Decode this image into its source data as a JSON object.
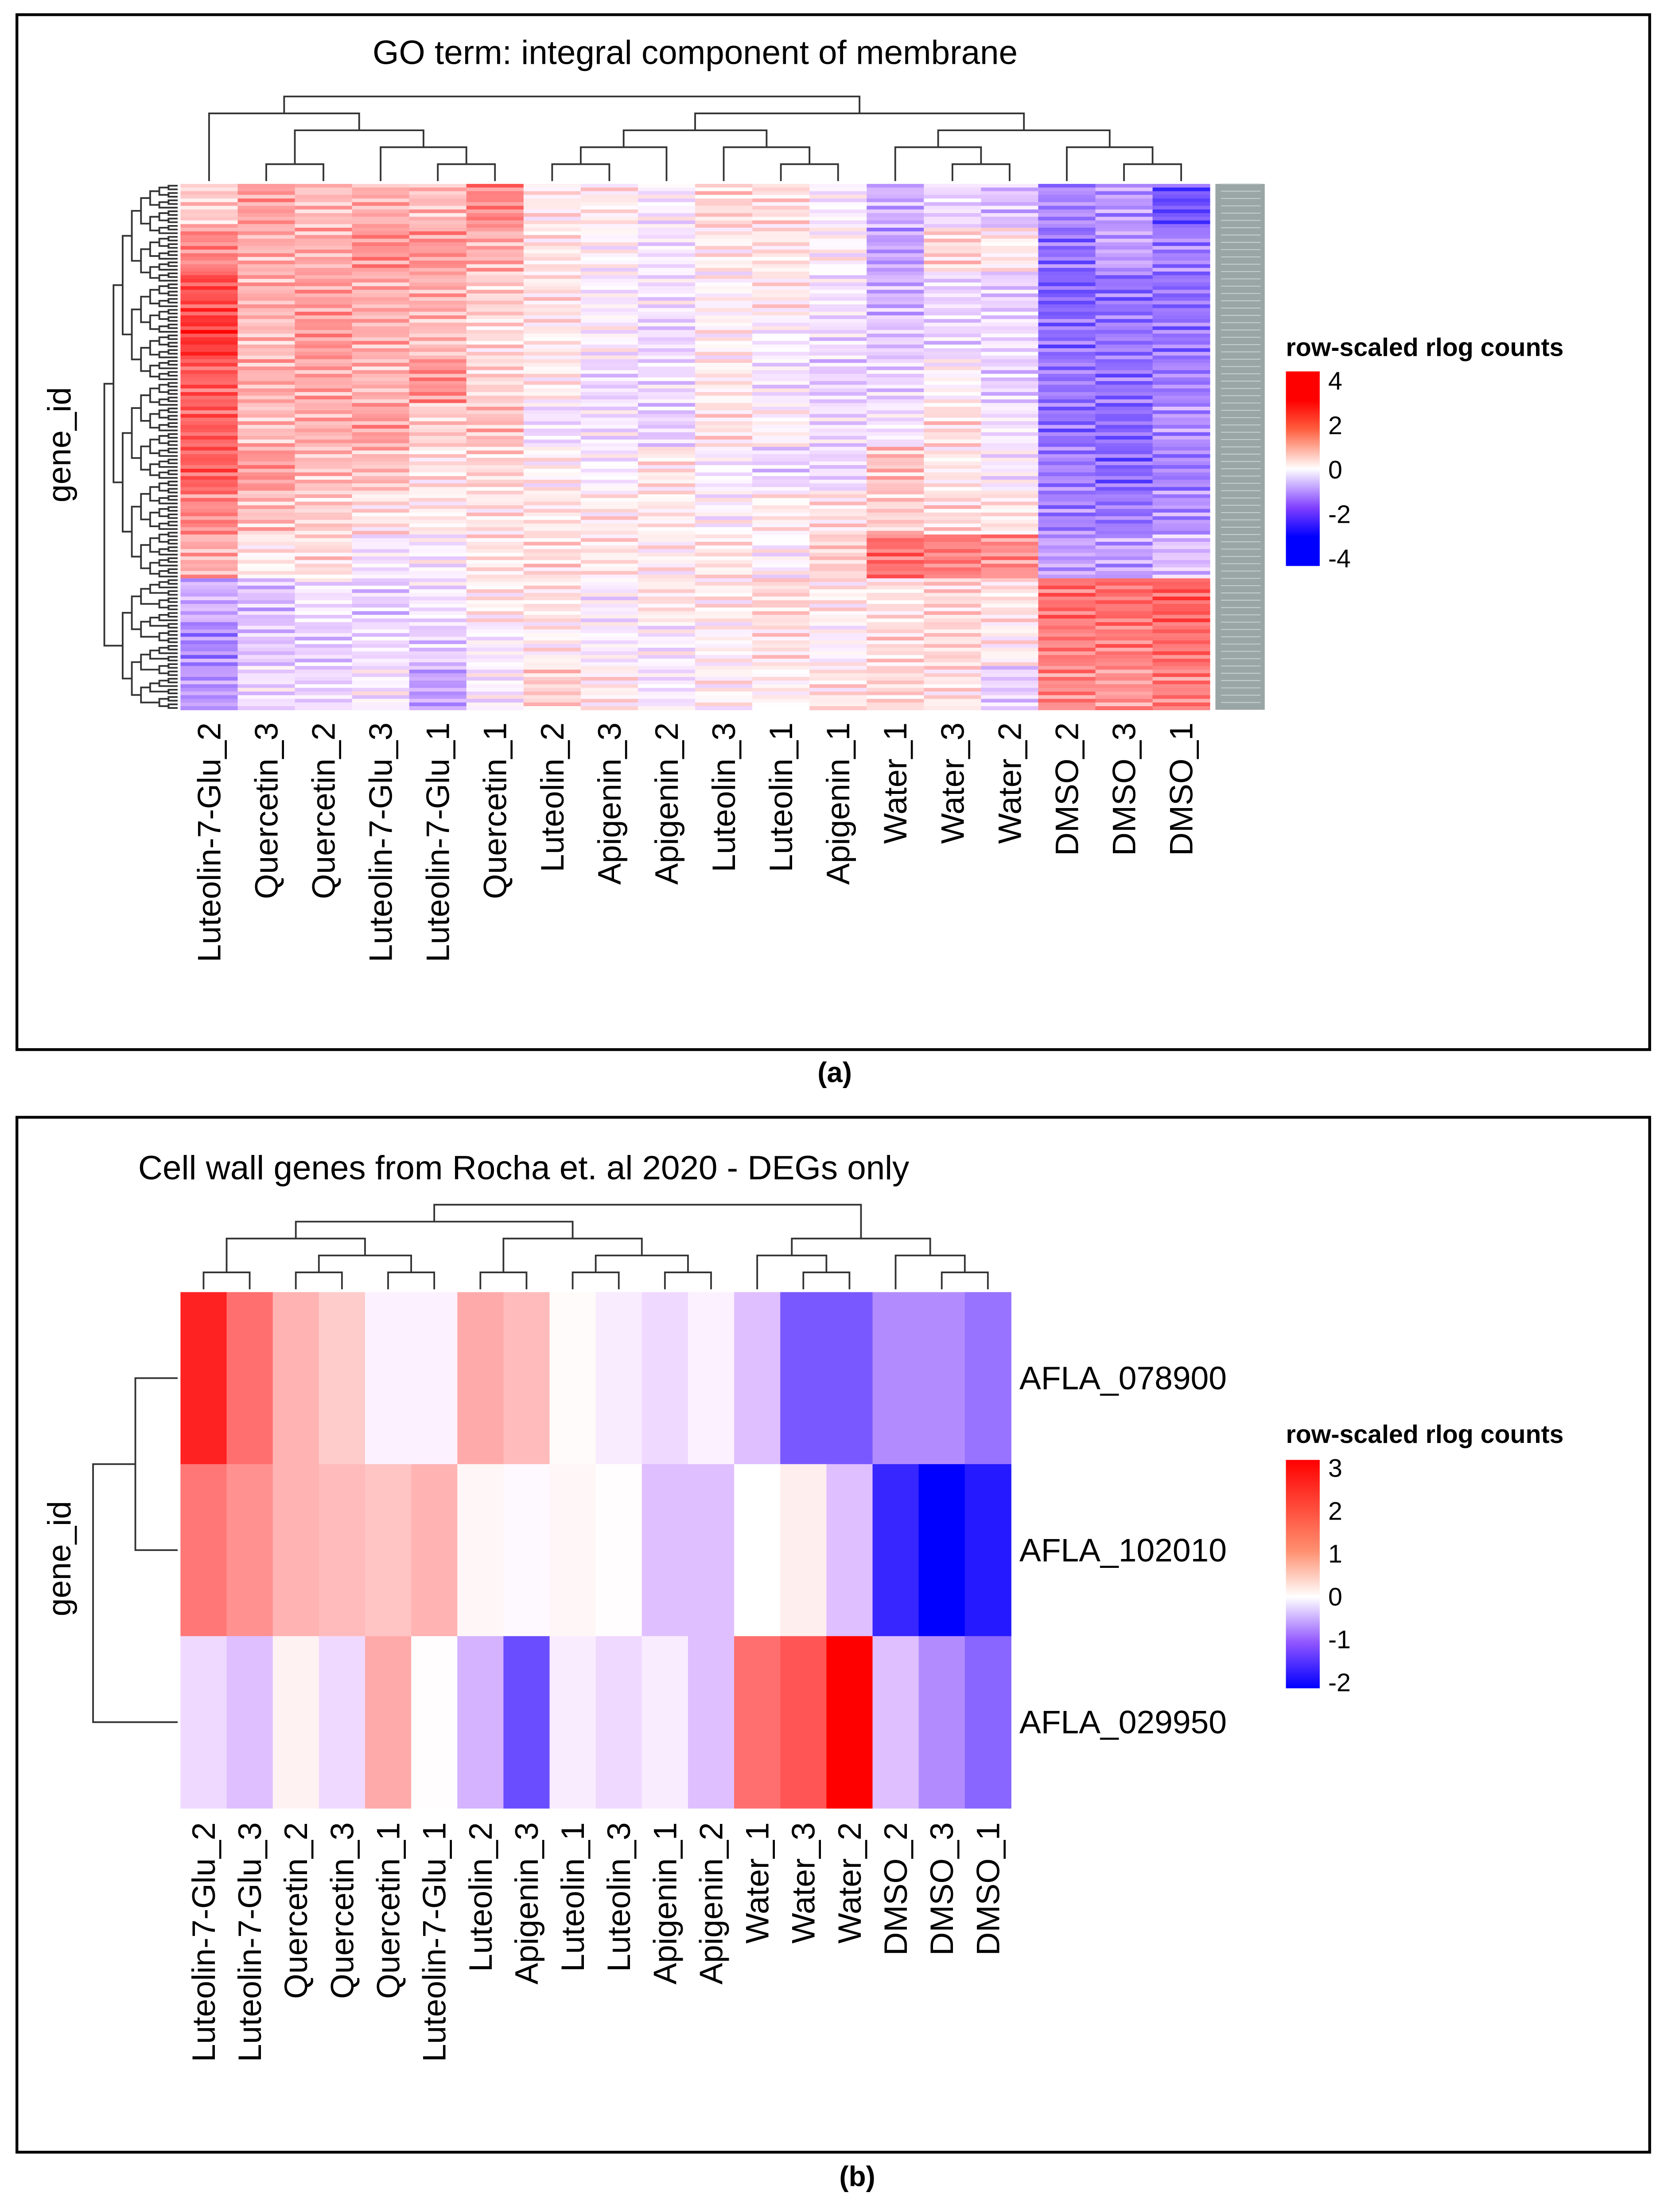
{
  "chart_data": [
    {
      "type": "heatmap",
      "panel_label": "(a)",
      "title": "GO term: integral component of membrane",
      "ylabel": "gene_id",
      "legend_title": "row-scaled rlog counts",
      "legend_ticks": [
        "4",
        "2",
        "0",
        "-2",
        "-4"
      ],
      "color_range": [
        -4,
        4
      ],
      "colors": {
        "high": "#FF0000",
        "mid": "#FFFFFF",
        "low": "#0000FF"
      },
      "columns": [
        "Luteolin-7-Glu_2",
        "Quercetin_3",
        "Quercetin_2",
        "Luteolin-7-Glu_3",
        "Luteolin-7-Glu_1",
        "Quercetin_1",
        "Luteolin_2",
        "Apigenin_3",
        "Apigenin_2",
        "Luteolin_3",
        "Luteolin_1",
        "Apigenin_1",
        "Water_1",
        "Water_3",
        "Water_2",
        "DMSO_2",
        "DMSO_3",
        "DMSO_1"
      ],
      "row_block_values_approx": [
        [
          0.6,
          1.2,
          0.8,
          1.0,
          0.8,
          1.5,
          0.2,
          0.2,
          -0.2,
          0.5,
          0.4,
          -0.2,
          -1.0,
          -0.5,
          -0.8,
          -1.5,
          -1.3,
          -2.2
        ],
        [
          1.5,
          1.0,
          1.0,
          1.4,
          1.3,
          1.0,
          0.3,
          0.0,
          -0.3,
          0.2,
          0.3,
          0.0,
          -1.2,
          0.5,
          0.2,
          -1.8,
          -1.2,
          -1.6
        ],
        [
          2.2,
          1.0,
          1.2,
          1.0,
          1.0,
          0.6,
          0.3,
          -0.2,
          -0.3,
          0.0,
          0.2,
          -0.3,
          -1.0,
          -0.5,
          -0.6,
          -2.0,
          -1.8,
          -1.8
        ],
        [
          2.5,
          0.8,
          1.3,
          1.0,
          0.8,
          0.4,
          0.2,
          -0.1,
          -0.5,
          0.1,
          -0.2,
          -0.4,
          -0.7,
          -0.5,
          -0.4,
          -1.8,
          -1.7,
          -1.7
        ],
        [
          2.0,
          1.0,
          1.1,
          0.9,
          1.4,
          0.5,
          0.2,
          -0.5,
          -0.4,
          0.2,
          -0.3,
          -0.6,
          -0.5,
          0.0,
          -0.6,
          -1.7,
          -1.8,
          -1.6
        ],
        [
          2.0,
          0.8,
          1.0,
          1.2,
          0.6,
          0.8,
          -0.4,
          -0.3,
          -0.6,
          0.3,
          0.0,
          -0.4,
          -0.3,
          0.4,
          -0.3,
          -1.8,
          -1.9,
          -1.4
        ],
        [
          2.0,
          1.3,
          0.8,
          0.8,
          0.3,
          0.5,
          0.1,
          -0.2,
          0.3,
          -0.2,
          -0.5,
          -0.5,
          0.8,
          0.2,
          -0.2,
          -1.6,
          -1.9,
          -1.6
        ],
        [
          1.5,
          0.8,
          0.6,
          0.3,
          0.2,
          0.3,
          0.3,
          0.2,
          0.2,
          -0.1,
          0.2,
          0.3,
          0.6,
          0.4,
          0.3,
          -1.6,
          -1.7,
          -1.4
        ],
        [
          1.0,
          0.2,
          0.4,
          -0.3,
          -0.2,
          0.3,
          0.4,
          0.3,
          0.1,
          0.3,
          -0.1,
          0.6,
          1.8,
          1.6,
          1.4,
          -1.2,
          -1.2,
          -0.8
        ],
        [
          -1.0,
          -0.8,
          -0.3,
          -0.6,
          -0.3,
          0.2,
          0.3,
          -0.2,
          0.3,
          0.2,
          0.5,
          0.2,
          0.3,
          0.5,
          0.3,
          1.8,
          1.8,
          2.0
        ],
        [
          -1.5,
          -0.7,
          -0.6,
          -0.4,
          -0.6,
          -0.2,
          0.1,
          -0.2,
          -0.2,
          0.0,
          0.3,
          -0.1,
          0.4,
          0.5,
          0.1,
          1.6,
          1.6,
          1.8
        ],
        [
          -1.3,
          -0.4,
          -0.5,
          -0.2,
          -1.2,
          -0.2,
          0.6,
          0.2,
          -0.3,
          0.1,
          0.1,
          0.3,
          0.5,
          0.3,
          -0.6,
          1.5,
          1.3,
          1.6
        ]
      ]
    },
    {
      "type": "heatmap",
      "panel_label": "(b)",
      "title": "Cell wall genes from Rocha et. al 2020 - DEGs only",
      "ylabel": "gene_id",
      "legend_title": "row-scaled rlog counts",
      "legend_ticks": [
        "3",
        "2",
        "1",
        "0",
        "-1",
        "-2"
      ],
      "color_range": [
        -2,
        3
      ],
      "colors": {
        "high": "#FF0000",
        "mid": "#FFFFFF",
        "low": "#0000FF"
      },
      "columns": [
        "Luteolin-7-Glu_2",
        "Luteolin-7-Glu_3",
        "Quercetin_2",
        "Quercetin_3",
        "Quercetin_1",
        "Luteolin-7-Glu_1",
        "Luteolin_2",
        "Apigenin_3",
        "Luteolin_1",
        "Luteolin_3",
        "Apigenin_1",
        "Apigenin_2",
        "Water_1",
        "Water_3",
        "Water_2",
        "DMSO_2",
        "DMSO_3",
        "DMSO_1"
      ],
      "rows": [
        "AFLA_078900",
        "AFLA_102010",
        "AFLA_029950"
      ],
      "values": [
        [
          2.6,
          1.7,
          0.9,
          0.6,
          -0.1,
          -0.1,
          1.0,
          0.8,
          0.05,
          -0.15,
          -0.3,
          -0.1,
          -0.5,
          -1.3,
          -1.3,
          -0.9,
          -0.9,
          -1.1
        ],
        [
          1.6,
          1.3,
          0.9,
          0.8,
          0.7,
          0.9,
          0.1,
          -0.05,
          0.1,
          0.02,
          -0.5,
          -0.5,
          0.0,
          0.2,
          -0.5,
          -1.7,
          -2.0,
          -1.8
        ],
        [
          -0.3,
          -0.5,
          0.15,
          -0.3,
          1.0,
          0.02,
          -0.6,
          -1.4,
          -0.15,
          -0.3,
          -0.15,
          -0.5,
          1.7,
          2.0,
          3.0,
          -0.5,
          -0.9,
          -1.2
        ]
      ]
    }
  ]
}
